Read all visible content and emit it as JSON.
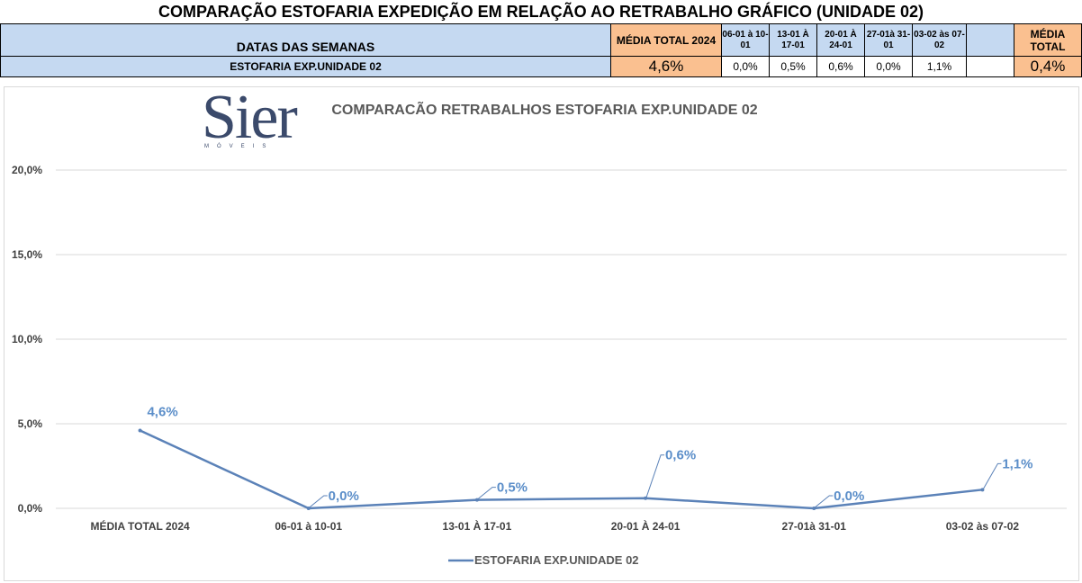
{
  "sheet": {
    "title": "COMPARAÇÃO ESTOFARIA EXPEDIÇÃO  EM RELAÇÃO AO RETRABALHO GRÁFICO (UNIDADE 02)"
  },
  "table": {
    "header_label": "DATAS DAS SEMANAS",
    "col_media_2024": "MÉDIA TOTAL 2024",
    "weeks": [
      "06-01 à 10-01",
      "13-01 À 17-01",
      "20-01 À 24-01",
      "27-01à 31-01",
      "03-02 às 07-02"
    ],
    "col_media_total": "MÉDIA TOTAL",
    "row_label": "ESTOFARIA EXP.UNIDADE 02",
    "row_media_2024": "4,6%",
    "row_weeks": [
      "0,0%",
      "0,5%",
      "0,6%",
      "0,0%",
      "1,1%"
    ],
    "row_blank": "",
    "row_media_total": "0,4%"
  },
  "logo": {
    "word": "Sier",
    "sub": "MÓVEIS"
  },
  "colors": {
    "table_blue": "#c5d9f1",
    "table_orange": "#fac090",
    "series_line": "#5b82b8",
    "data_label": "#5b8ec9",
    "chart_title": "#595959",
    "gridline": "#d9d9d9"
  },
  "chart_data": {
    "type": "line",
    "title": "COMPARACÃO RETRABALHOS  ESTOFARIA EXP.UNIDADE 02",
    "categories": [
      "MÉDIA TOTAL 2024",
      "06-01 à 10-01",
      "13-01 À 17-01",
      "20-01 À 24-01",
      "27-01à 31-01",
      "03-02 às 07-02"
    ],
    "series": [
      {
        "name": "ESTOFARIA EXP.UNIDADE 02",
        "values": [
          4.6,
          0.0,
          0.5,
          0.6,
          0.0,
          1.1
        ],
        "labels": [
          "4,6%",
          "0,0%",
          "0,5%",
          "0,6%",
          "0,0%",
          "1,1%"
        ]
      }
    ],
    "ylim": [
      0,
      20
    ],
    "yticks": [
      0,
      5,
      10,
      15,
      20
    ],
    "ytick_labels": [
      "0,0%",
      "5,0%",
      "10,0%",
      "15,0%",
      "20,0%"
    ],
    "grid": true,
    "legend": "bottom"
  }
}
